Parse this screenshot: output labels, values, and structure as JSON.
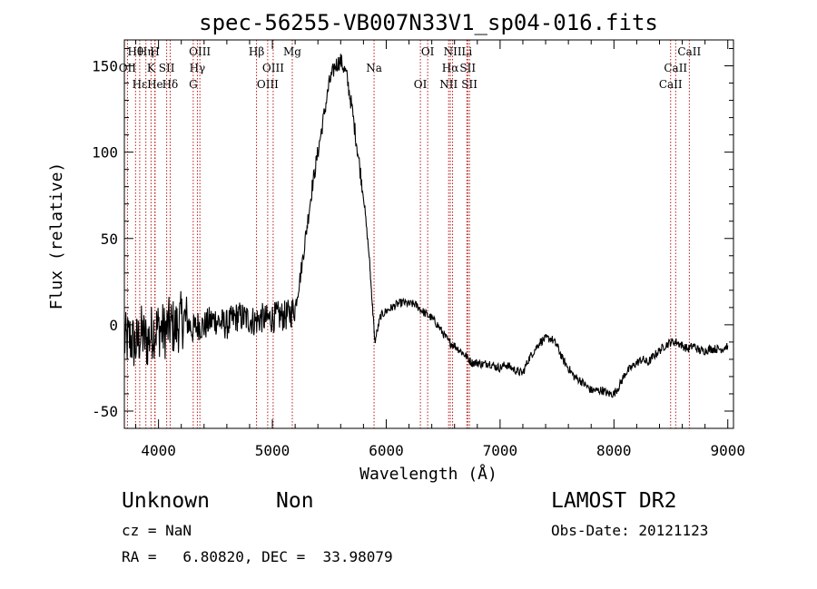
{
  "chart_data": {
    "type": "line",
    "title": "spec-56255-VB007N33V1_sp04-016.fits",
    "xlabel": "Wavelength (Å)",
    "ylabel": "Flux (relative)",
    "xlim": [
      3700,
      9050
    ],
    "ylim": [
      -60,
      165
    ],
    "xticks": [
      4000,
      5000,
      6000,
      7000,
      8000,
      9000
    ],
    "yticks": [
      -50,
      0,
      50,
      100,
      150
    ],
    "xtick_labels": [
      "4000",
      "5000",
      "6000",
      "7000",
      "8000",
      "9000"
    ],
    "ytick_labels": [
      "-50",
      "0",
      "50",
      "100",
      "150"
    ],
    "grid": false,
    "series": [
      {
        "x": [
          3700,
          3750,
          3800,
          3850,
          3900,
          3950,
          4000,
          4050,
          4100,
          4150,
          4200,
          4250,
          4300,
          4350,
          4400,
          4450,
          4500,
          4550,
          4600,
          4650,
          4700,
          4750,
          4800,
          4850,
          4900,
          4950,
          5000,
          5050,
          5100,
          5150,
          5200,
          5250,
          5300,
          5350,
          5400,
          5450,
          5500,
          5550,
          5600,
          5650,
          5700,
          5750,
          5800,
          5850,
          5880,
          5900,
          5950,
          6000,
          6050,
          6100,
          6150,
          6200,
          6250,
          6300,
          6350,
          6400,
          6450,
          6500,
          6550,
          6600,
          6650,
          6700,
          6750,
          6800,
          6850,
          6900,
          6950,
          7000,
          7050,
          7100,
          7150,
          7200,
          7250,
          7300,
          7350,
          7400,
          7450,
          7500,
          7550,
          7600,
          7650,
          7700,
          7750,
          7800,
          7850,
          7900,
          7950,
          8000,
          8050,
          8100,
          8150,
          8200,
          8250,
          8300,
          8350,
          8400,
          8450,
          8500,
          8550,
          8600,
          8650,
          8700,
          8750,
          8800,
          8850,
          8900,
          8950,
          9000
        ],
        "y": [
          -10,
          -8,
          -12,
          -5,
          -10,
          -3,
          -2,
          -4,
          0,
          -2,
          3,
          2,
          -3,
          0,
          -1,
          2,
          3,
          1,
          0,
          3,
          5,
          4,
          3,
          2,
          4,
          3,
          4,
          5,
          5,
          6,
          10,
          30,
          55,
          80,
          100,
          120,
          140,
          150,
          153,
          145,
          125,
          100,
          75,
          40,
          10,
          -10,
          5,
          8,
          10,
          12,
          13,
          12,
          12,
          9,
          6,
          4,
          0,
          -5,
          -10,
          -12,
          -15,
          -18,
          -22,
          -22,
          -23,
          -22,
          -24,
          -25,
          -23,
          -25,
          -27,
          -28,
          -20,
          -15,
          -10,
          -8,
          -8,
          -12,
          -20,
          -25,
          -30,
          -32,
          -35,
          -38,
          -38,
          -38,
          -40,
          -40,
          -35,
          -28,
          -25,
          -22,
          -20,
          -22,
          -18,
          -15,
          -12,
          -10,
          -10,
          -12,
          -14,
          -12,
          -15,
          -15,
          -14,
          -14,
          -14,
          -12
        ]
      }
    ],
    "lines": [
      {
        "label": "Hθ",
        "x": 3798
      },
      {
        "label": "OII",
        "x": 3727
      },
      {
        "label": "Hε",
        "x": 3835
      },
      {
        "label": "Hη",
        "x": 3889
      },
      {
        "label": "K",
        "x": 3934
      },
      {
        "label": "He",
        "x": 3970
      },
      {
        "label": "H",
        "x": 3968
      },
      {
        "label": "SII",
        "x": 4072
      },
      {
        "label": "Hδ",
        "x": 4102
      },
      {
        "label": "OIII",
        "x": 4363
      },
      {
        "label": "Hγ",
        "x": 4341
      },
      {
        "label": "G",
        "x": 4305
      },
      {
        "label": "Hβ",
        "x": 4861
      },
      {
        "label": "OIII",
        "x": 5007
      },
      {
        "label": "OIII",
        "x": 4959
      },
      {
        "label": "Mg",
        "x": 5175
      },
      {
        "label": "Na",
        "x": 5893
      },
      {
        "label": "OI",
        "x": 6300
      },
      {
        "label": "OI",
        "x": 6364
      },
      {
        "label": "Hα",
        "x": 6563
      },
      {
        "label": "NII",
        "x": 6548
      },
      {
        "label": "NII",
        "x": 6583
      },
      {
        "label": "SII",
        "x": 6716
      },
      {
        "label": "SII",
        "x": 6731
      },
      {
        "label": "Li",
        "x": 6708
      },
      {
        "label": "CaII",
        "x": 8542
      },
      {
        "label": "CaII",
        "x": 8498
      },
      {
        "label": "CaII",
        "x": 8662
      }
    ]
  },
  "info": {
    "class_label": "Unknown",
    "subclass_label": "Non",
    "survey": "LAMOST DR2",
    "cz": "cz = NaN",
    "obs_date": "Obs-Date: 20121123",
    "coords": "RA =   6.80820, DEC =  33.98079"
  }
}
